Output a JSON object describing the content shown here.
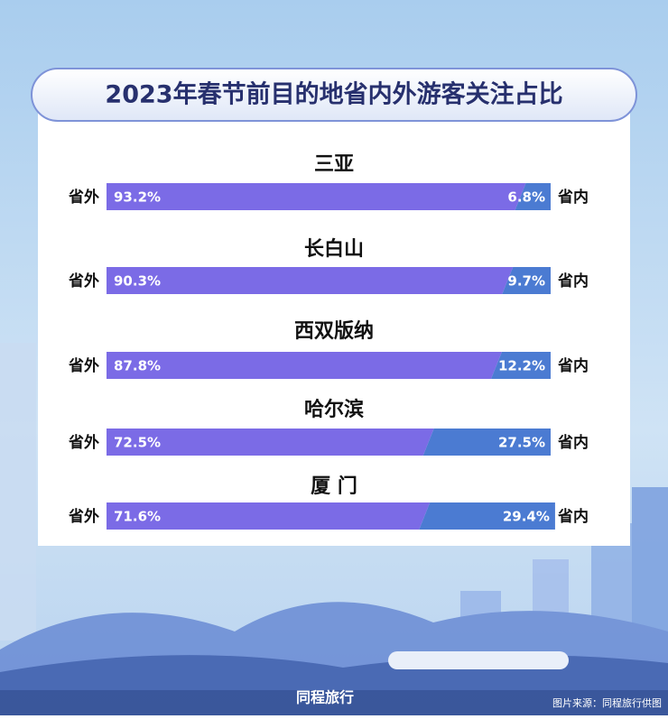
{
  "chart_data": {
    "type": "stacked-bar-rows",
    "title": "2023年春节前目的地省内外游客关注占比",
    "categories": [
      "三亚",
      "长白山",
      "西双版纳",
      "哈尔滨",
      "厦 门"
    ],
    "series": [
      {
        "name": "省外",
        "color": "#7b6be6",
        "values": [
          93.2,
          90.3,
          87.8,
          72.5,
          71.6
        ],
        "value_labels": [
          "93.2%",
          "90.3%",
          "87.8%",
          "72.5%",
          "71.6%"
        ]
      },
      {
        "name": "省内",
        "color": "#4b7bd2",
        "values": [
          6.8,
          9.7,
          12.2,
          27.5,
          29.4
        ],
        "value_labels": [
          "6.8%",
          "9.7%",
          "12.2%",
          "27.5%",
          "29.4%"
        ]
      }
    ],
    "xlim": [
      0,
      100
    ]
  },
  "footer": {
    "brand": "同程旅行",
    "source": "图片来源：同程旅行供图"
  }
}
